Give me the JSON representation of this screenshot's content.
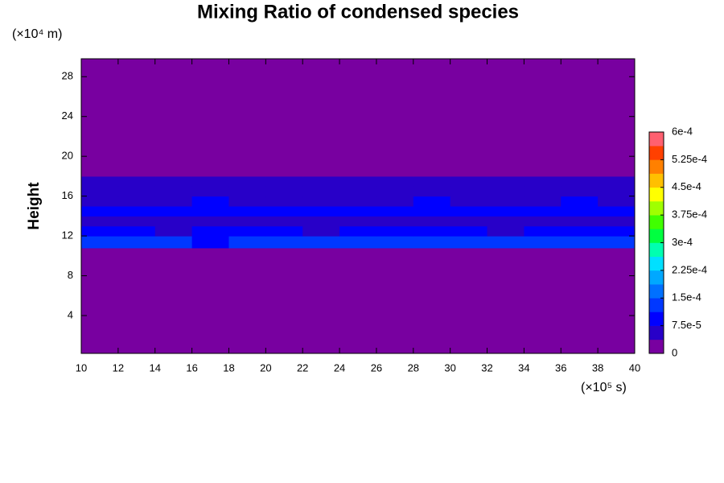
{
  "chart_data": {
    "type": "heatmap",
    "title": "Mixing Ratio of condensed species",
    "y_label": "Height",
    "x_unit": "(×10⁵ s)",
    "y_unit": "(×10⁴ m)",
    "xlim": [
      10,
      40
    ],
    "xticks": [
      10,
      12,
      14,
      16,
      18,
      20,
      22,
      24,
      26,
      28,
      30,
      32,
      34,
      36,
      38,
      40
    ],
    "ylim": [
      0.2,
      29.8
    ],
    "yticks": [
      4,
      8,
      12,
      16,
      20,
      24,
      28
    ],
    "x_edges": [
      10,
      12,
      14,
      16,
      18,
      20,
      22,
      24,
      26,
      28,
      30,
      32,
      34,
      36,
      38,
      40
    ],
    "y_edges": [
      0.2,
      10.8,
      12,
      13,
      14,
      15,
      16,
      17,
      18,
      19,
      29.8
    ],
    "z": [
      [
        0,
        0,
        0,
        0,
        0,
        0,
        0,
        0,
        0,
        0,
        0,
        0,
        0,
        0,
        0
      ],
      [
        0.00013,
        0.00012,
        0.00014,
        0.00011,
        0.00013,
        0.00012,
        0.00013,
        0.00012,
        0.00014,
        0.00012,
        0.00013,
        0.00012,
        0.00013,
        0.00012,
        0.00014
      ],
      [
        8e-05,
        9e-05,
        7e-05,
        8e-05,
        9e-05,
        8e-05,
        7e-05,
        9e-05,
        8e-05,
        8e-05,
        9e-05,
        7e-05,
        8e-05,
        9e-05,
        8e-05
      ],
      [
        6e-05,
        5e-05,
        6e-05,
        7e-05,
        5e-05,
        6e-05,
        6e-05,
        5e-05,
        7e-05,
        6e-05,
        5e-05,
        6e-05,
        7e-05,
        6e-05,
        5e-05
      ],
      [
        0.0001,
        0.00011,
        0.0001,
        9e-05,
        0.0001,
        0.00011,
        0.0001,
        0.0001,
        9e-05,
        0.00011,
        0.0001,
        0.0001,
        0.00011,
        0.0001,
        9e-05
      ],
      [
        7e-05,
        6e-05,
        7e-05,
        8e-05,
        7e-05,
        6e-05,
        7e-05,
        7e-05,
        6e-05,
        8e-05,
        7e-05,
        6e-05,
        7e-05,
        8e-05,
        7e-05
      ],
      [
        5e-05,
        4e-05,
        5e-05,
        5e-05,
        4e-05,
        5e-05,
        5e-05,
        4e-05,
        5e-05,
        5e-05,
        4e-05,
        5e-05,
        5e-05,
        4e-05,
        5e-05
      ],
      [
        6e-05,
        5e-05,
        6e-05,
        6e-05,
        5e-05,
        6e-05,
        7e-05,
        5e-05,
        6e-05,
        6e-05,
        7e-05,
        5e-05,
        6e-05,
        6e-05,
        5e-05
      ],
      [
        3e-05,
        3e-05,
        2e-05,
        3e-05,
        3e-05,
        2e-05,
        3e-05,
        3e-05,
        3e-05,
        2e-05,
        3e-05,
        3e-05,
        2e-05,
        3e-05,
        3e-05
      ],
      [
        0,
        0,
        0,
        0,
        0,
        0,
        0,
        0,
        0,
        0,
        0,
        0,
        0,
        0,
        0
      ]
    ],
    "clim": [
      0,
      0.0006
    ],
    "colorscale": [
      "#7800a0",
      "#2800c8",
      "#0000ff",
      "#0038ff",
      "#0070ff",
      "#00a8ff",
      "#00e0ff",
      "#00ffb0",
      "#00ff40",
      "#40ff00",
      "#a0ff00",
      "#ffff00",
      "#ffc000",
      "#ff8000",
      "#ff4000",
      "#ff6070"
    ],
    "zticks": [
      0,
      {
        "value": 7.5e-05,
        "label": "7.5e-5"
      },
      {
        "value": 0.00015,
        "label": "1.5e-4"
      },
      {
        "value": 0.000225,
        "label": "2.25e-4"
      },
      {
        "value": 0.0003,
        "label": "3e-4"
      },
      {
        "value": 0.000375,
        "label": "3.75e-4"
      },
      {
        "value": 0.00045,
        "label": "4.5e-4"
      },
      {
        "value": 0.000525,
        "label": "5.25e-4"
      },
      {
        "value": 0.0006,
        "label": "6e-4"
      }
    ]
  }
}
